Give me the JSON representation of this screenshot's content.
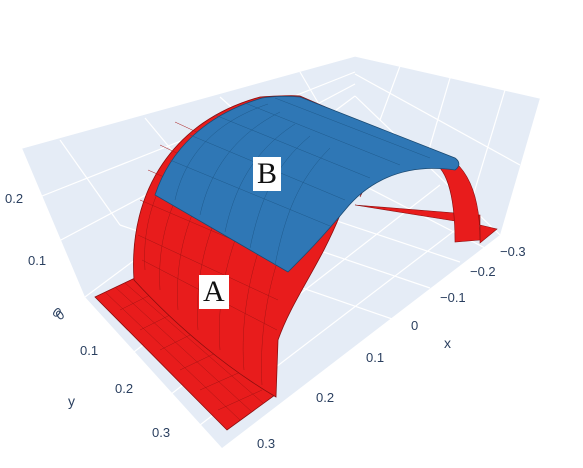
{
  "scene": {
    "background_panes": "#e5ecf6",
    "grid_line": "#ffffff",
    "red_fill": "#e81c1c",
    "red_edge": "#8a0f0f",
    "blue_fill": "#2f77b5",
    "blue_edge": "#1b4a72"
  },
  "axes": {
    "x": {
      "title": "x",
      "ticks": [
        "−0.3",
        "−0.2",
        "−0.1",
        "0",
        "0.1",
        "0.2",
        "0.3"
      ]
    },
    "y": {
      "title": "y",
      "ticks": [
        "0",
        "0.1",
        "0.2",
        "0.3"
      ]
    },
    "z": {
      "title": "",
      "ticks": [
        "0",
        "0.1",
        "0.2"
      ]
    }
  },
  "labels": {
    "a": "A",
    "b": "B"
  }
}
